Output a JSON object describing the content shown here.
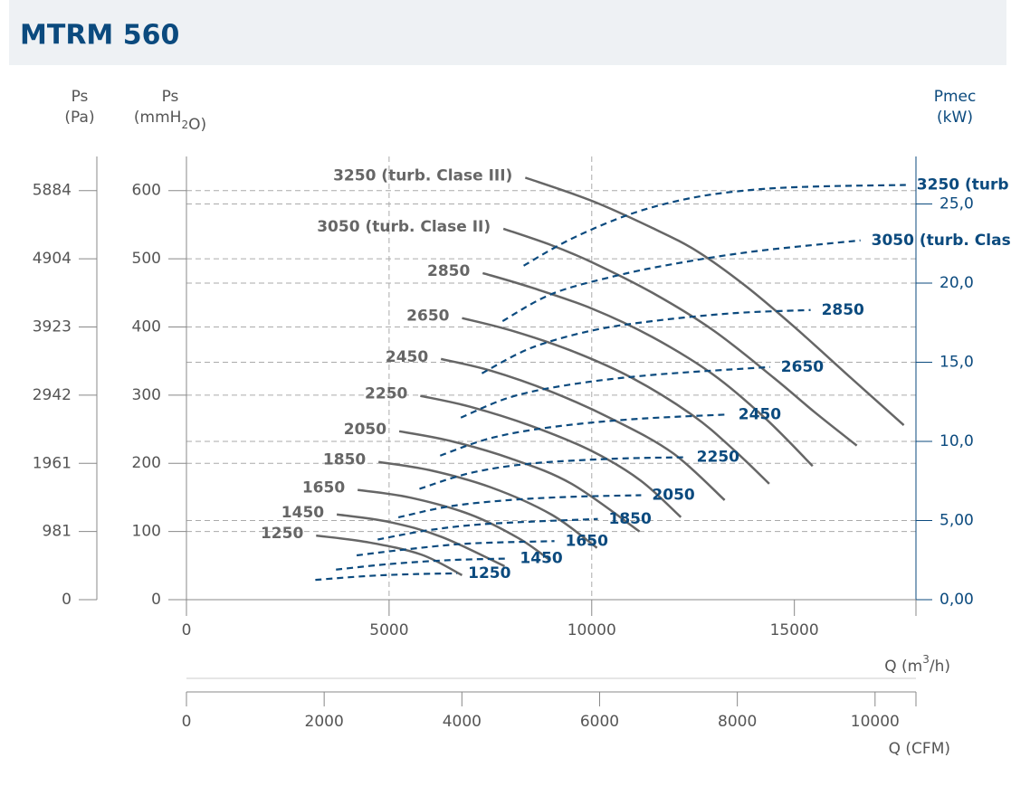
{
  "header": {
    "title": "MTRM 560"
  },
  "chart_data": {
    "type": "line",
    "xlabel": [
      "Q (m",
      "3",
      "/h)"
    ],
    "xlim": [
      0,
      18000
    ],
    "xticks": [
      0,
      5000,
      10000,
      15000
    ],
    "xgrid": [
      5000,
      10000
    ],
    "x2label": "Q (CFM)",
    "x2lim": [
      0,
      10594
    ],
    "x2ticks": [
      0,
      2000,
      4000,
      6000,
      8000,
      10000
    ],
    "ylabel": [
      "Ps",
      "(mmH",
      "2",
      "O)"
    ],
    "ylim": [
      0,
      650
    ],
    "yticks": [
      0,
      100,
      200,
      300,
      400,
      500,
      600
    ],
    "y3label": [
      "Ps",
      "(Pa)"
    ],
    "y3lim": [
      0,
      6375
    ],
    "y3ticks": [
      0,
      981,
      1961,
      2942,
      3923,
      4904,
      5884
    ],
    "y2label": [
      "Pmec",
      "(kW)"
    ],
    "y2lim": [
      0,
      28
    ],
    "y2ticks": [
      {
        "value": 0,
        "label": "0,00"
      },
      {
        "value": 5,
        "label": "5,00"
      },
      {
        "value": 10,
        "label": "10,0"
      },
      {
        "value": 15,
        "label": "15,0"
      },
      {
        "value": 20,
        "label": "20,0"
      },
      {
        "value": 25,
        "label": "25,0"
      }
    ],
    "grid": true,
    "series": [
      {
        "name": "3250 (turb. Clase III)",
        "color": "#666666",
        "style": "solid",
        "x": [
          8360,
          10000,
          11500,
          12600,
          13800,
          15000,
          16400,
          17700
        ],
        "values": [
          619,
          585,
          545,
          511,
          460,
          400,
          325,
          256
        ]
      },
      {
        "name": "3050 (turb. Clase II)",
        "color": "#666666",
        "style": "solid",
        "x": [
          7820,
          9000,
          10000,
          11500,
          13000,
          14500,
          15500,
          16540
        ],
        "values": [
          544,
          520,
          495,
          450,
          395,
          325,
          275,
          226
        ]
      },
      {
        "name": "2850",
        "color": "#666666",
        "style": "solid",
        "x": [
          7310,
          8500,
          10000,
          11500,
          13000,
          14300,
          15450
        ],
        "values": [
          479,
          458,
          427,
          385,
          330,
          265,
          196
        ]
      },
      {
        "name": "2650",
        "color": "#666666",
        "style": "solid",
        "x": [
          6800,
          8000,
          9500,
          11000,
          12500,
          13500,
          14380
        ],
        "values": [
          413,
          395,
          365,
          325,
          270,
          220,
          170
        ]
      },
      {
        "name": "2450",
        "color": "#666666",
        "style": "solid",
        "x": [
          6280,
          7500,
          9000,
          10500,
          12000,
          13280
        ],
        "values": [
          353,
          336,
          305,
          265,
          215,
          146
        ]
      },
      {
        "name": "2250",
        "color": "#666666",
        "style": "solid",
        "x": [
          5770,
          7000,
          8500,
          10000,
          11200,
          12200
        ],
        "values": [
          299,
          283,
          255,
          218,
          175,
          121
        ]
      },
      {
        "name": "2050",
        "color": "#666666",
        "style": "solid",
        "x": [
          5250,
          6500,
          8000,
          9500,
          11180
        ],
        "values": [
          247,
          233,
          207,
          170,
          100
        ]
      },
      {
        "name": "1850",
        "color": "#666666",
        "style": "solid",
        "x": [
          4740,
          6000,
          7500,
          9000,
          10130
        ],
        "values": [
          202,
          190,
          165,
          125,
          76
        ]
      },
      {
        "name": "1650",
        "color": "#666666",
        "style": "solid",
        "x": [
          4225,
          5500,
          7000,
          8200,
          8970
        ],
        "values": [
          161,
          150,
          125,
          90,
          58
        ]
      },
      {
        "name": "1450",
        "color": "#666666",
        "style": "solid",
        "x": [
          3710,
          5000,
          6300,
          7850
        ],
        "values": [
          125,
          114,
          92,
          49
        ]
      },
      {
        "name": "1250",
        "color": "#666666",
        "style": "solid",
        "x": [
          3200,
          4500,
          5800,
          6800
        ],
        "values": [
          94,
          84,
          66,
          36
        ]
      },
      {
        "name": "3250 (turb",
        "color": "#0b4a7e",
        "style": "dashed",
        "axis": "y2",
        "x": [
          8320,
          9500,
          11000,
          12500,
          14000,
          15500,
          17750
        ],
        "values": [
          21.1,
          22.8,
          24.4,
          25.4,
          25.9,
          26.1,
          26.2
        ]
      },
      {
        "name": "3050 (turb. Clas",
        "color": "#0b4a7e",
        "style": "dashed",
        "axis": "y2",
        "x": [
          7800,
          9000,
          10500,
          12000,
          14000,
          16630
        ],
        "values": [
          17.6,
          19.3,
          20.4,
          21.2,
          22.0,
          22.7
        ]
      },
      {
        "name": "2850",
        "color": "#0b4a7e",
        "style": "dashed",
        "axis": "y2",
        "x": [
          7290,
          8500,
          10000,
          11500,
          13500,
          15400
        ],
        "values": [
          14.3,
          15.9,
          17.0,
          17.6,
          18.1,
          18.3
        ]
      },
      {
        "name": "2650",
        "color": "#0b4a7e",
        "style": "dashed",
        "axis": "y2",
        "x": [
          6770,
          8000,
          9500,
          11500,
          14400
        ],
        "values": [
          11.5,
          12.8,
          13.6,
          14.2,
          14.7
        ]
      },
      {
        "name": "2450",
        "color": "#0b4a7e",
        "style": "dashed",
        "axis": "y2",
        "x": [
          6260,
          7500,
          9000,
          11000,
          13350
        ],
        "values": [
          9.1,
          10.2,
          10.9,
          11.4,
          11.7
        ]
      },
      {
        "name": "2250",
        "color": "#0b4a7e",
        "style": "dashed",
        "axis": "y2",
        "x": [
          5750,
          7000,
          8500,
          10500,
          12320
        ],
        "values": [
          7.0,
          8.0,
          8.6,
          8.9,
          9.0
        ]
      },
      {
        "name": "2050",
        "color": "#0b4a7e",
        "style": "dashed",
        "axis": "y2",
        "x": [
          5230,
          6500,
          8000,
          9500,
          11220
        ],
        "values": [
          5.2,
          5.9,
          6.3,
          6.5,
          6.6
        ]
      },
      {
        "name": "1850",
        "color": "#0b4a7e",
        "style": "dashed",
        "axis": "y2",
        "x": [
          4720,
          6000,
          7500,
          10150
        ],
        "values": [
          3.8,
          4.4,
          4.8,
          5.1
        ]
      },
      {
        "name": "1650",
        "color": "#0b4a7e",
        "style": "dashed",
        "axis": "y2",
        "x": [
          4200,
          5500,
          7000,
          9080
        ],
        "values": [
          2.8,
          3.2,
          3.55,
          3.7
        ]
      },
      {
        "name": "1450",
        "color": "#0b4a7e",
        "style": "dashed",
        "axis": "y2",
        "x": [
          3690,
          5000,
          6500,
          7960
        ],
        "values": [
          1.9,
          2.25,
          2.5,
          2.6
        ]
      },
      {
        "name": "1250",
        "color": "#0b4a7e",
        "style": "dashed",
        "axis": "y2",
        "x": [
          3180,
          4500,
          5700,
          6680
        ],
        "values": [
          1.25,
          1.5,
          1.62,
          1.66
        ]
      }
    ]
  }
}
